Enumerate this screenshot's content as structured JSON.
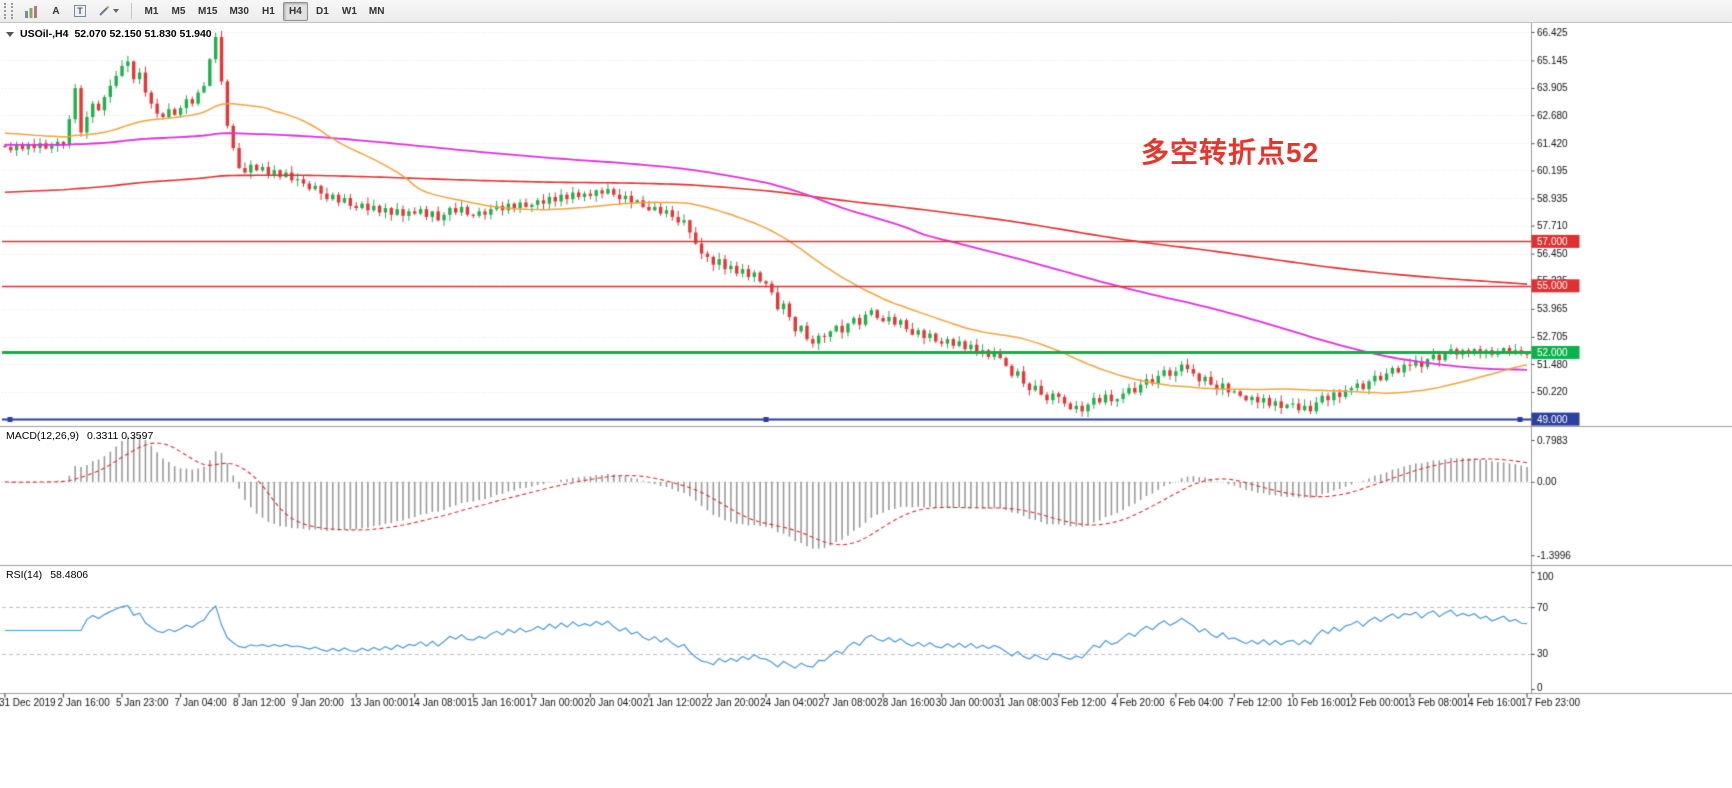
{
  "toolbar": {
    "a_label": "A",
    "t_label": "T",
    "timeframes": [
      {
        "label": "M1"
      },
      {
        "label": "M5"
      },
      {
        "label": "M15"
      },
      {
        "label": "M30"
      },
      {
        "label": "H1"
      },
      {
        "label": "H4"
      },
      {
        "label": "D1"
      },
      {
        "label": "W1"
      },
      {
        "label": "MN"
      }
    ],
    "active_timeframe": "H4"
  },
  "chart_title": {
    "symbol": "USOil-,H4",
    "ohlc": "52.070 52.150 51.830 51.940"
  },
  "annotation": {
    "text": "多空转折点52",
    "color": "#e8352b"
  },
  "macd_panel": {
    "label": "MACD(12,26,9)",
    "values": "0.3311 0.3597"
  },
  "rsi_panel": {
    "label": "RSI(14)",
    "values": "58.4806"
  },
  "chart_data": {
    "type": "candlestick",
    "symbol": "USOil-",
    "timeframe": "H4",
    "first_open": 61.3,
    "closes": [
      61.25,
      61.1,
      61.32,
      61.15,
      61.38,
      61.2,
      61.42,
      61.18,
      61.3,
      61.48,
      61.35,
      62.5,
      63.9,
      61.9,
      62.6,
      63.2,
      62.9,
      63.5,
      64.0,
      64.45,
      64.9,
      65.1,
      64.3,
      64.6,
      63.7,
      63.2,
      62.75,
      62.6,
      62.95,
      62.7,
      63.0,
      63.4,
      63.2,
      63.7,
      64.0,
      65.2,
      66.2,
      64.2,
      62.2,
      61.2,
      60.3,
      60.1,
      60.45,
      60.2,
      60.35,
      60.0,
      60.2,
      59.9,
      60.1,
      59.75,
      59.8,
      59.6,
      59.35,
      59.5,
      59.15,
      58.9,
      59.1,
      58.75,
      58.95,
      58.6,
      58.5,
      58.7,
      58.4,
      58.6,
      58.3,
      58.5,
      58.2,
      58.45,
      58.15,
      58.35,
      58.25,
      58.45,
      58.1,
      58.35,
      57.95,
      58.2,
      58.5,
      58.3,
      58.55,
      58.2,
      58.15,
      58.35,
      58.2,
      58.45,
      58.6,
      58.4,
      58.7,
      58.5,
      58.75,
      58.55,
      58.65,
      58.85,
      58.7,
      59.0,
      58.8,
      59.1,
      58.9,
      59.2,
      59.0,
      59.15,
      59.05,
      59.3,
      59.15,
      59.35,
      59.1,
      58.9,
      59.05,
      58.75,
      58.85,
      58.55,
      58.4,
      58.55,
      58.25,
      58.4,
      58.1,
      57.85,
      57.95,
      57.4,
      56.9,
      56.45,
      56.3,
      55.95,
      56.2,
      55.75,
      55.9,
      55.55,
      55.75,
      55.4,
      55.6,
      55.2,
      55.1,
      54.7,
      53.95,
      54.2,
      53.6,
      52.95,
      53.2,
      52.6,
      52.4,
      52.75,
      52.7,
      52.95,
      53.2,
      52.9,
      53.3,
      53.55,
      53.25,
      53.7,
      53.9,
      53.55,
      53.4,
      53.6,
      53.25,
      53.45,
      53.05,
      52.8,
      53.0,
      52.65,
      52.85,
      52.5,
      52.4,
      52.6,
      52.3,
      52.5,
      52.15,
      52.35,
      51.95,
      52.1,
      51.8,
      51.95,
      51.75,
      51.4,
      50.95,
      51.15,
      50.6,
      50.3,
      50.5,
      50.1,
      49.85,
      50.15,
      50.0,
      49.7,
      49.45,
      49.6,
      49.35,
      49.65,
      49.95,
      49.75,
      50.1,
      49.8,
      49.9,
      50.15,
      50.4,
      50.2,
      50.55,
      50.8,
      50.6,
      50.95,
      51.2,
      50.95,
      51.15,
      51.45,
      51.25,
      51.05,
      50.7,
      50.9,
      50.55,
      50.35,
      50.6,
      50.2,
      50.25,
      50.05,
      49.85,
      50.0,
      49.75,
      49.95,
      49.6,
      49.8,
      49.5,
      49.65,
      49.7,
      49.4,
      49.6,
      49.35,
      49.75,
      50.05,
      49.85,
      50.2,
      50.0,
      50.3,
      50.4,
      50.6,
      50.35,
      50.7,
      50.95,
      50.75,
      51.05,
      51.3,
      51.1,
      51.45,
      51.4,
      51.6,
      51.35,
      51.7,
      51.9,
      51.65,
      51.95,
      52.15,
      51.9,
      52.1,
      52.0,
      52.15,
      51.95,
      52.1,
      51.9,
      52.05,
      52.2,
      52.0,
      52.1,
      51.95,
      51.94
    ],
    "colors": {
      "up": "#1fb14c",
      "down": "#e73535"
    },
    "y_ticks": [
      66.425,
      65.145,
      63.905,
      62.68,
      61.42,
      60.195,
      58.935,
      57.71,
      56.45,
      55.225,
      53.965,
      52.705,
      51.48,
      50.22
    ],
    "x_labels": [
      "31 Dec 2019",
      "2 Jan 16:00",
      "5 Jan 23:00",
      "7 Jan 04:00",
      "8 Jan 12:00",
      "9 Jan 20:00",
      "13 Jan 00:00",
      "14 Jan 08:00",
      "15 Jan 16:00",
      "17 Jan 00:00",
      "20 Jan 04:00",
      "21 Jan 12:00",
      "22 Jan 20:00",
      "24 Jan 04:00",
      "27 Jan 08:00",
      "28 Jan 16:00",
      "30 Jan 00:00",
      "31 Jan 08:00",
      "3 Feb 12:00",
      "4 Feb 20:00",
      "6 Feb 04:00",
      "7 Feb 12:00",
      "10 Feb 16:00",
      "12 Feb 00:00",
      "13 Feb 08:00",
      "14 Feb 16:00",
      "17 Feb 23:00"
    ],
    "hlines": [
      {
        "price": 57.0,
        "label": "57.000",
        "color": "#e03030",
        "width": 1.5,
        "handles": false
      },
      {
        "price": 55.0,
        "label": "55.000",
        "color": "#e03030",
        "width": 1.5,
        "handles": false
      },
      {
        "price": 52.0,
        "label": "52.000",
        "color": "#0db14b",
        "width": 3,
        "handles": false
      },
      {
        "price": 49.0,
        "label": "49.000",
        "color": "#2b3f9e",
        "width": 2,
        "handles": true
      }
    ],
    "mas": [
      {
        "name": "slow-ma",
        "method": "ema",
        "period": 350,
        "seed": 59.2,
        "color": "#e03030",
        "width": 1.6
      },
      {
        "name": "medium-ma",
        "method": "sma",
        "period": 120,
        "seed": 61.35,
        "color": "#e02ee0",
        "width": 1.8
      },
      {
        "name": "fast-ma",
        "method": "sma",
        "period": 34,
        "seed": 61.9,
        "color": "#f2a33c",
        "width": 1.5
      }
    ],
    "macd": {
      "fast": 12,
      "slow": 26,
      "signal": 9,
      "axis_ticks": [
        0.7983,
        0,
        -1.3996
      ],
      "axis_labels": [
        "0.7983",
        "0.00",
        "-1.3996"
      ],
      "hist_color": "#9b9b9b",
      "signal_color": "#e03030"
    },
    "rsi": {
      "period": 14,
      "levels": [
        70,
        30
      ],
      "axis_values": [
        100,
        70,
        30,
        0
      ],
      "axis_labels": [
        "100",
        "70",
        "30",
        "0"
      ],
      "color": "#4a9ade"
    }
  }
}
